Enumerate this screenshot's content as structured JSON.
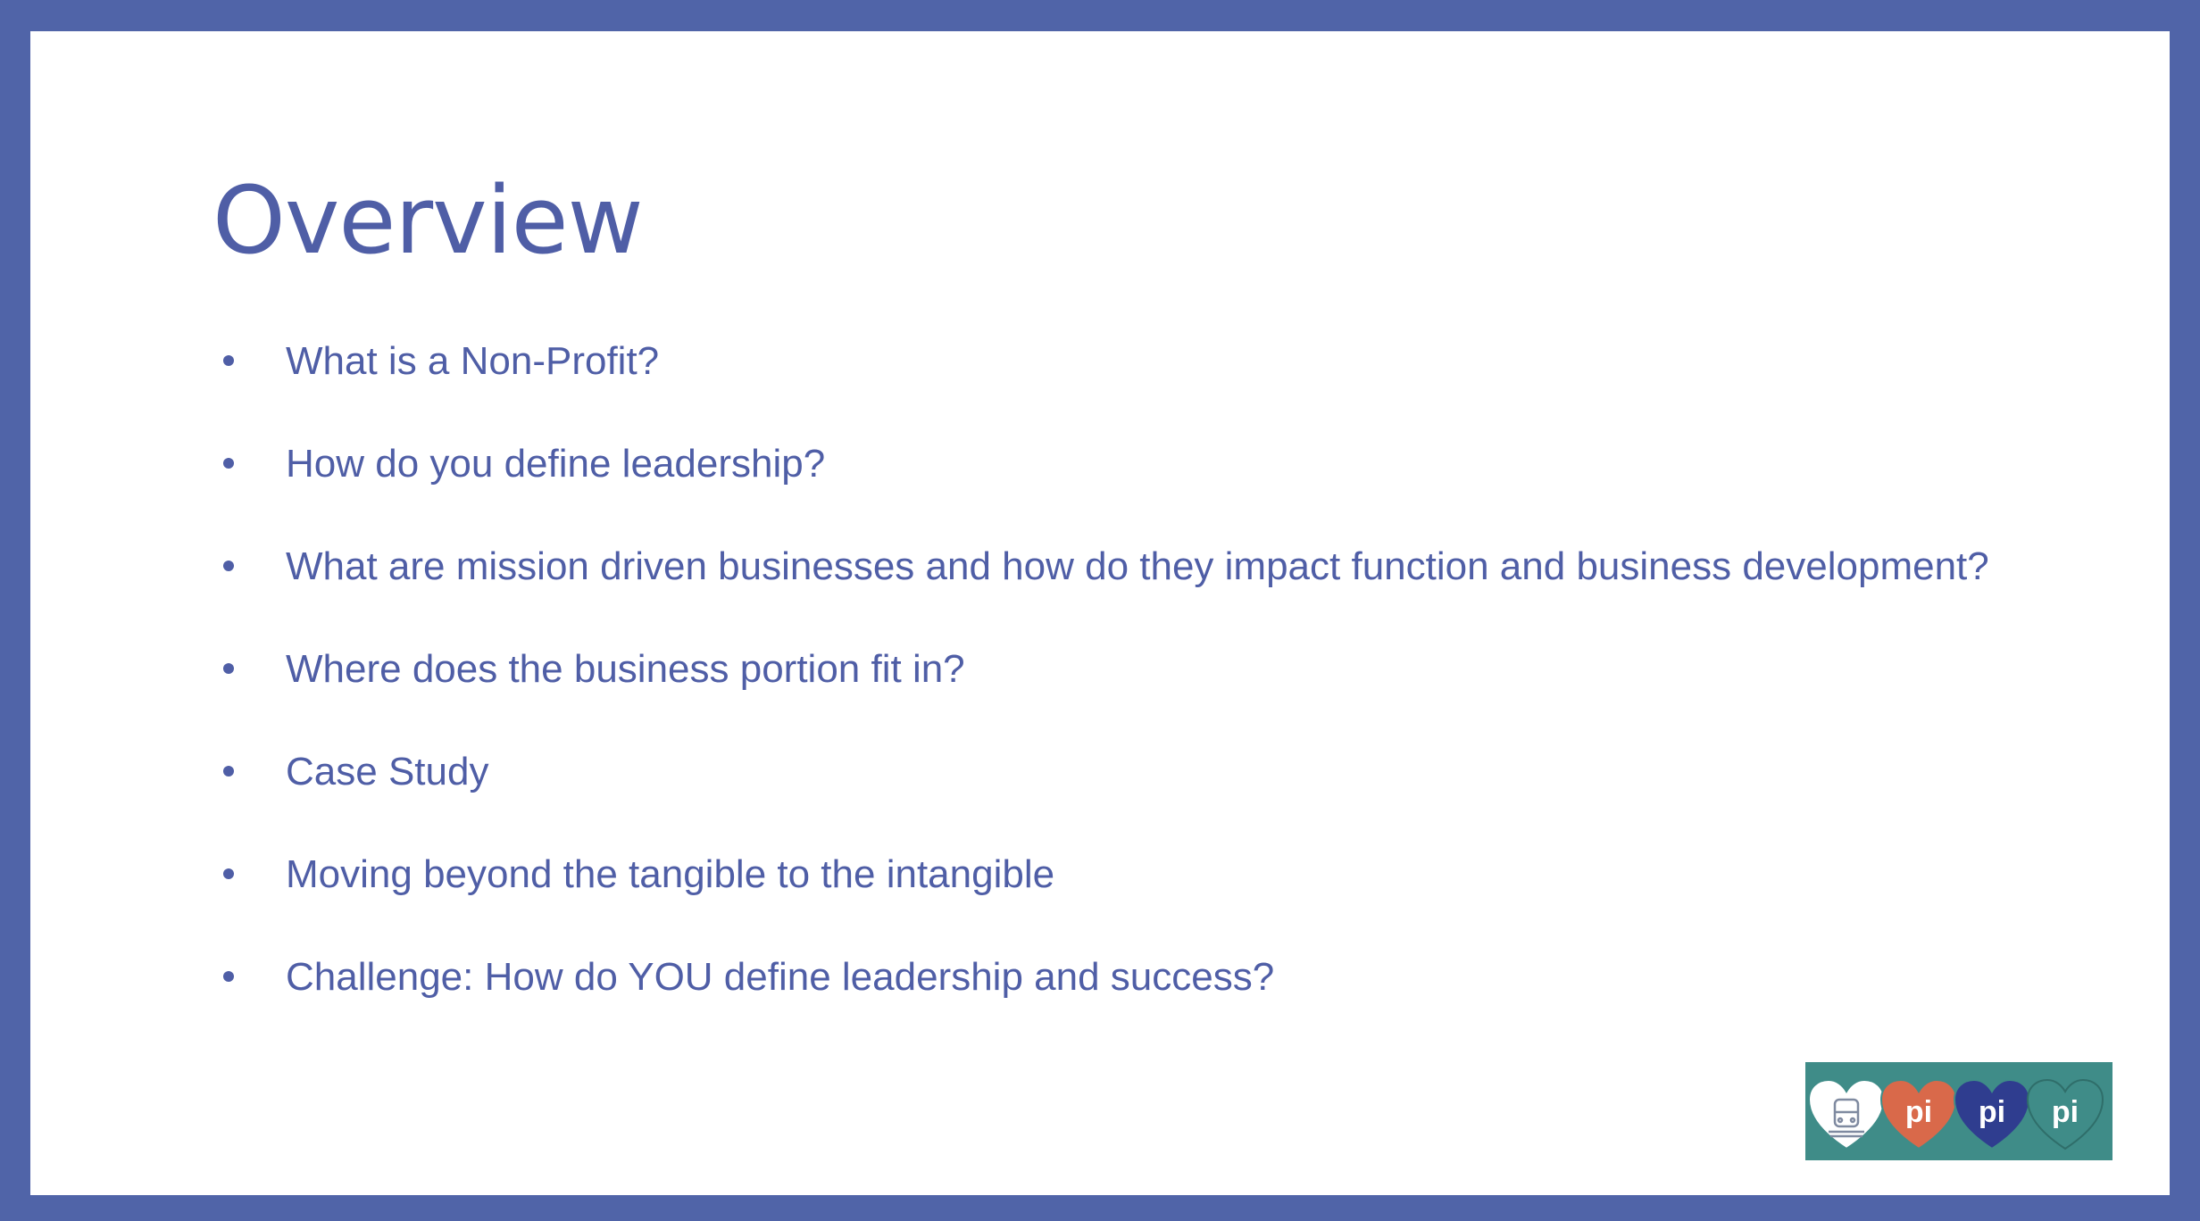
{
  "slide": {
    "title": "Overview",
    "bullets": [
      "What is a Non-Profit?",
      "How do you define leadership?",
      "What are mission driven businesses and how do they impact function and business development?",
      "Where does the business portion fit in?",
      "Case Study",
      "Moving beyond the tangible to the intangible",
      "Challenge:  How do YOU define leadership and success?"
    ]
  },
  "logo": {
    "hearts": [
      {
        "icon": "bus-icon",
        "text": "",
        "color": "#ffffff"
      },
      {
        "icon": "",
        "text": "pi",
        "color": "#d9694a"
      },
      {
        "icon": "",
        "text": "pi",
        "color": "#2f3d8f"
      },
      {
        "icon": "",
        "text": "pi",
        "color": "#3f8c88"
      }
    ],
    "background": "#3f8c88"
  },
  "colors": {
    "frame": "#5064a8",
    "text": "#4f5ea6",
    "slide_background": "#ffffff"
  }
}
